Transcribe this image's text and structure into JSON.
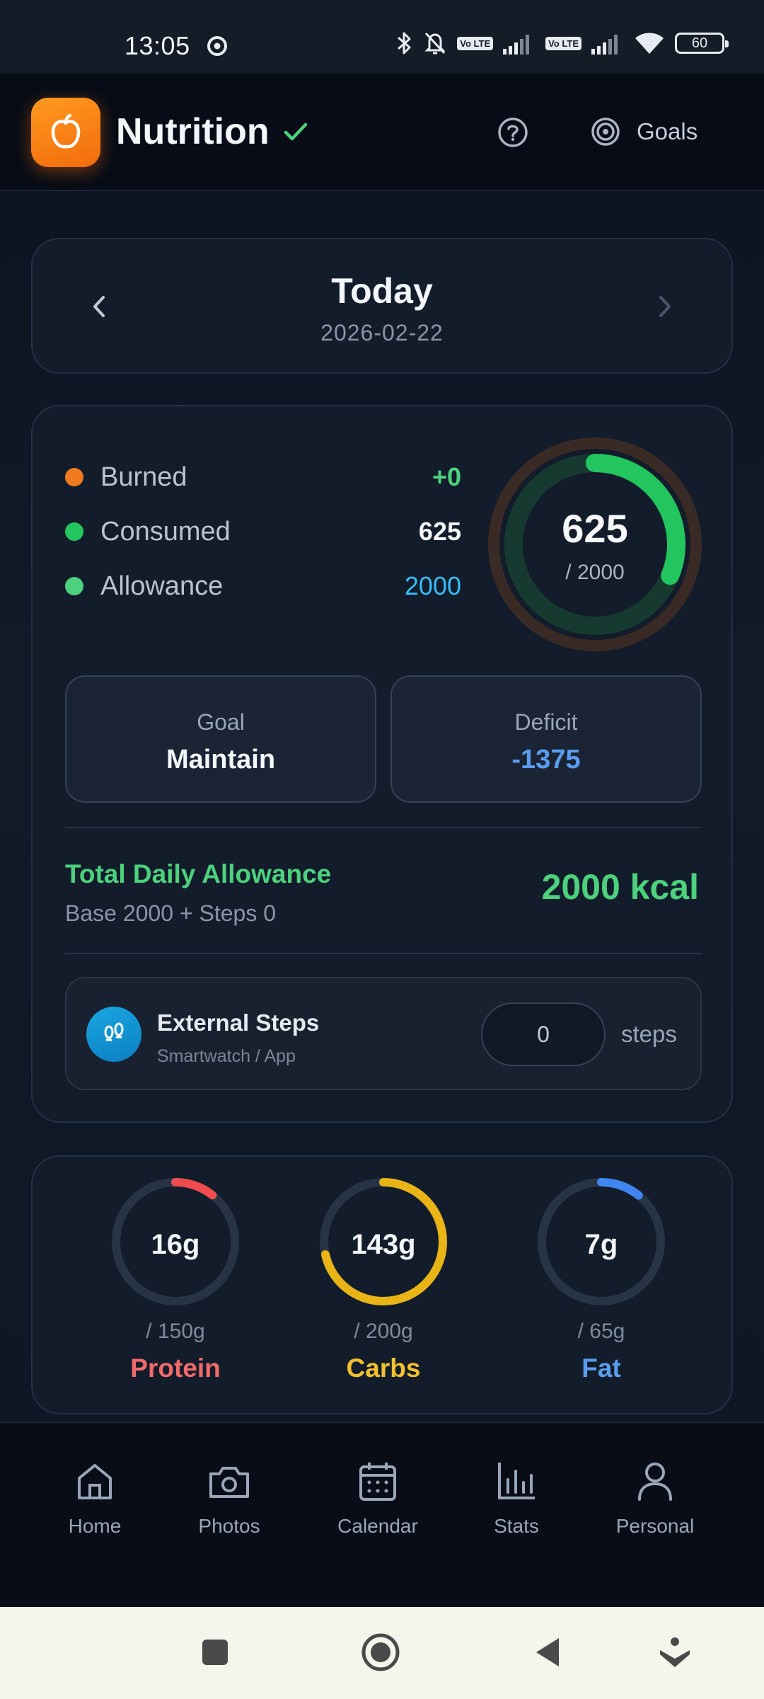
{
  "status_bar": {
    "time": "13:05",
    "battery": "60",
    "volte_1": "Vo LTE",
    "volte_2": "Vo LTE",
    "icons": [
      "chrome-icon",
      "bluetooth-icon",
      "bell-off-icon",
      "volte-icon",
      "signal-icon",
      "wifi-icon",
      "battery-icon"
    ]
  },
  "header": {
    "title": "Nutrition",
    "goals_label": "Goals",
    "icons": [
      "apple-logo-icon",
      "check-icon",
      "help-icon",
      "target-icon"
    ]
  },
  "date": {
    "title": "Today",
    "date": "2026-02-22"
  },
  "summary": {
    "burned_label": "Burned",
    "burned_value": "+0",
    "consumed_label": "Consumed",
    "consumed_value": "625",
    "allowance_label": "Allowance",
    "allowance_value": "2000",
    "ring_value": "625",
    "ring_sub": "/ 2000",
    "ring_progress": 0.3125,
    "goal_label": "Goal",
    "goal_value": "Maintain",
    "deficit_label": "Deficit",
    "deficit_value": "-1375",
    "tda_title": "Total Daily Allowance",
    "tda_sub": "Base 2000 + Steps 0",
    "tda_value": "2000 kcal",
    "steps_title": "External Steps",
    "steps_sub": "Smartwatch / App",
    "steps_value": "0",
    "steps_unit": "steps"
  },
  "macros": [
    {
      "value": "16g",
      "max": "/ 150g",
      "name": "Protein",
      "progress": 0.107,
      "color": "#ef4d4d"
    },
    {
      "value": "143g",
      "max": "/ 200g",
      "name": "Carbs",
      "progress": 0.715,
      "color": "#e8b416"
    },
    {
      "value": "7g",
      "max": "/ 65g",
      "name": "Fat",
      "progress": 0.108,
      "color": "#3f86f0"
    }
  ],
  "colors": {
    "burned": "#f07a1f",
    "consumed": "#22c55e",
    "allowance": "#4cd17c",
    "allowance_value": "#38bdf8",
    "deficit_value": "#5a9df0",
    "protein_label": "#f26b6b",
    "carbs_label": "#f2c12e",
    "fat_label": "#5a9df0"
  },
  "nav": {
    "items": [
      {
        "label": "Home",
        "icon": "home-icon"
      },
      {
        "label": "Photos",
        "icon": "camera-icon"
      },
      {
        "label": "Calendar",
        "icon": "calendar-icon"
      },
      {
        "label": "Stats",
        "icon": "stats-icon"
      },
      {
        "label": "Personal",
        "icon": "person-icon"
      }
    ]
  }
}
